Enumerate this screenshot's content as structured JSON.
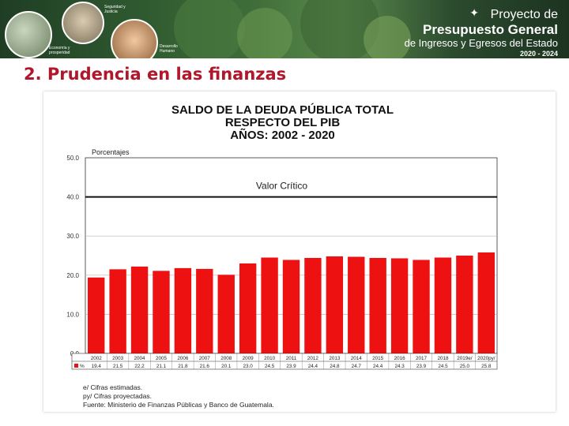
{
  "banner": {
    "circle1_label": "Economía y prosperidad",
    "circle2_label": "Seguridad y Justicia",
    "circle3_label": "Desarrollo Humano",
    "project_line1": "Proyecto de",
    "project_line2": "Presupuesto General",
    "project_line3": "de Ingresos y Egresos del Estado",
    "project_years": "2020 - 2024"
  },
  "slide_title": "2. Prudencia en las finanzas",
  "chart_data": {
    "type": "bar",
    "title_lines": [
      "SALDO DE LA DEUDA PÚBLICA TOTAL",
      "RESPECTO DEL PIB",
      "AÑOS: 2002 - 2020"
    ],
    "ylabel": "Porcentajes",
    "ylim": [
      0,
      50
    ],
    "yticks": [
      "0.0",
      "10.0",
      "20.0",
      "30.0",
      "40.0",
      "50.0"
    ],
    "yticks_values": [
      0,
      10,
      20,
      30,
      40,
      50
    ],
    "categories": [
      "2002",
      "2003",
      "2004",
      "2005",
      "2006",
      "2007",
      "2008",
      "2009",
      "2010",
      "2011",
      "2012",
      "2013",
      "2014",
      "2015",
      "2016",
      "2017",
      "2018",
      "2019e/",
      "2020py/"
    ],
    "values": [
      19.4,
      21.5,
      22.2,
      21.1,
      21.8,
      21.6,
      20.1,
      23.0,
      24.5,
      23.9,
      24.4,
      24.8,
      24.7,
      24.4,
      24.3,
      23.9,
      24.5,
      25.0,
      25.8
    ],
    "value_labels": [
      "19.4",
      "21.5",
      "22.2",
      "21.1",
      "21.8",
      "21.6",
      "20.1",
      "23.0",
      "24.5",
      "23.9",
      "24.4",
      "24.8",
      "24.7",
      "24.4",
      "24.3",
      "23.9",
      "24.5",
      "25.0",
      "25.8"
    ],
    "table_row_label": "%",
    "reference_line": {
      "value": 40,
      "label": "Valor Crítico"
    },
    "grid": true,
    "bar_color": "#ee1111",
    "notes": [
      "e/ Cifras estimadas.",
      "py/ Cifras proyectadas.",
      "Fuente: Ministerio de Finanzas Públicas y Banco de Guatemala."
    ]
  }
}
